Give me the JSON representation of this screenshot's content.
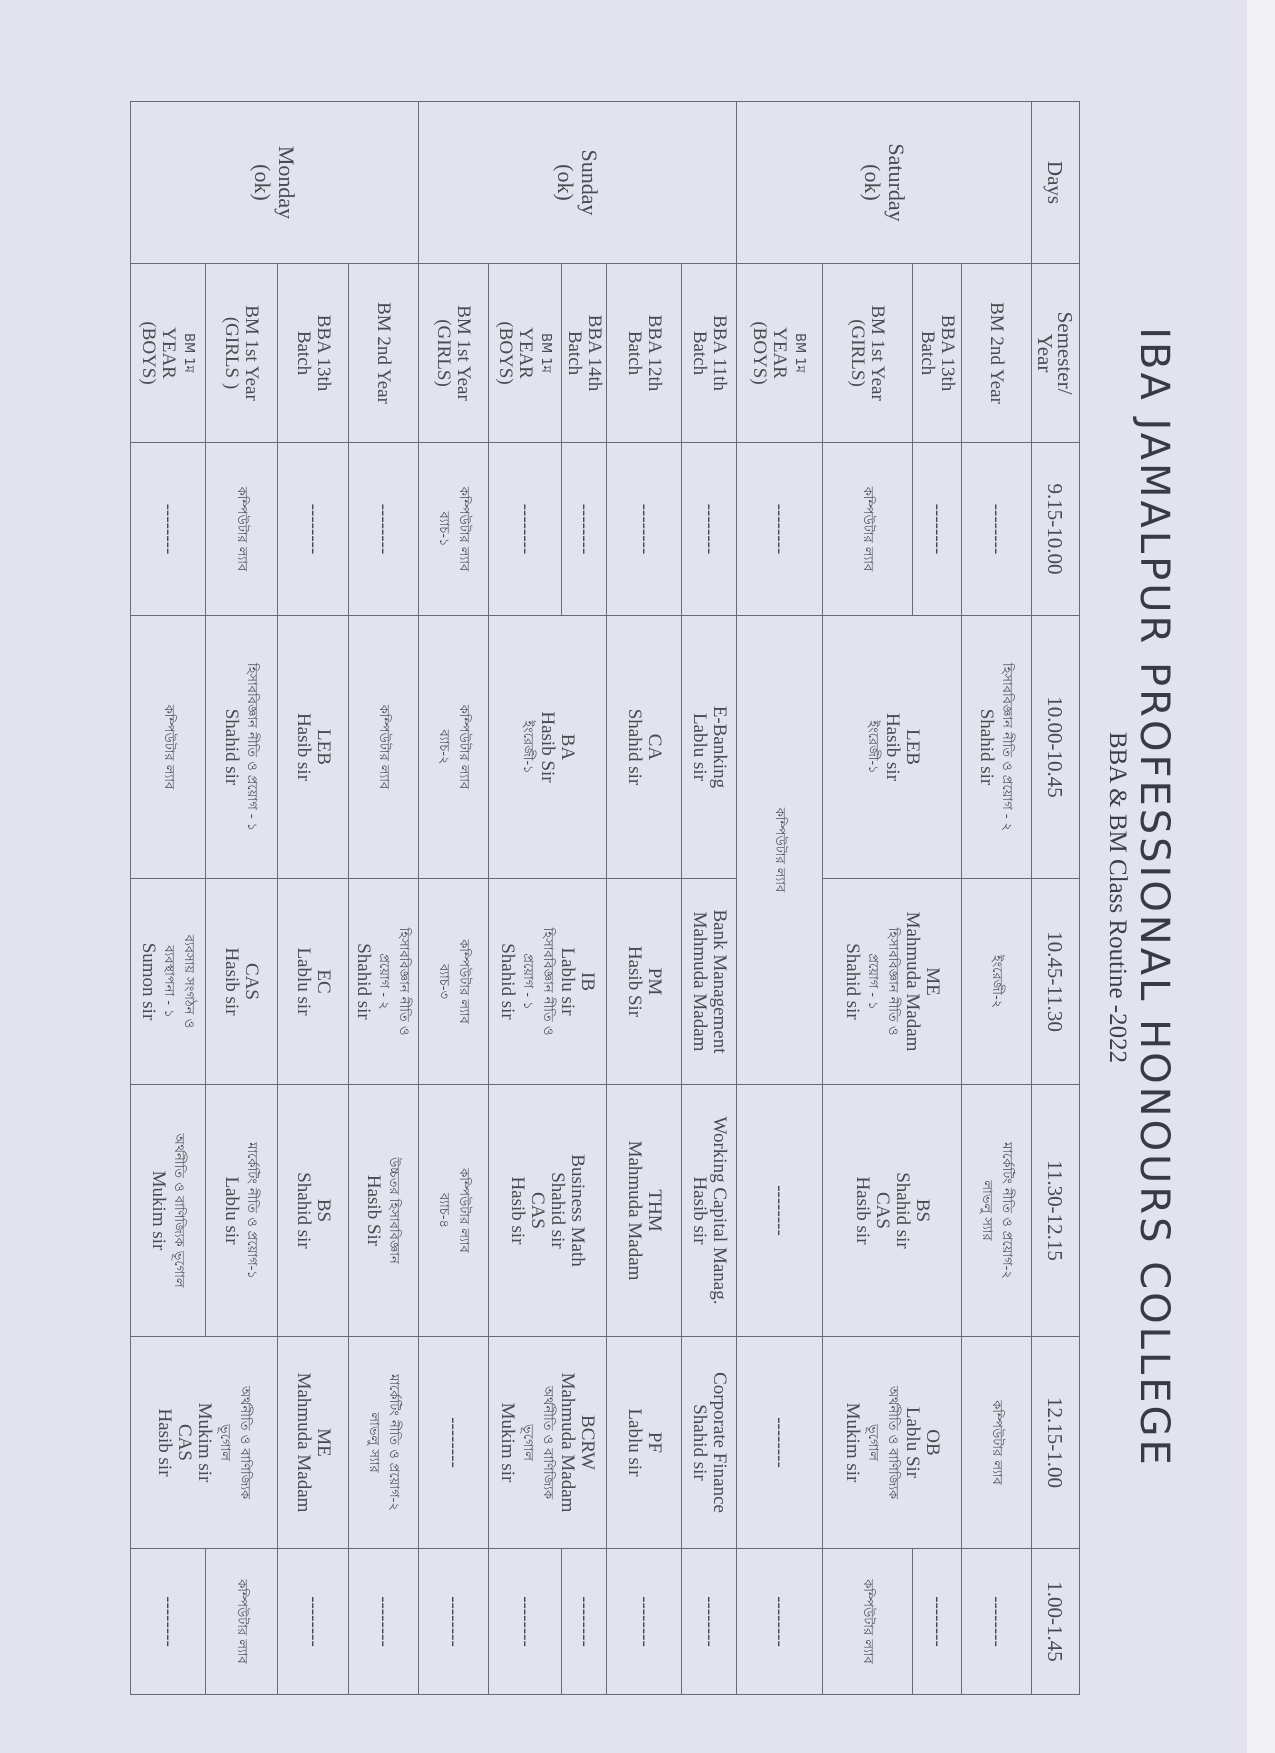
{
  "document": {
    "title": "IBA JAMALPUR PROFESSIONAL HONOURS COLLEGE",
    "subtitle": "BBA & BM Class Routine -2022",
    "paper_color": "#e3e3ed",
    "line_color": "#6b6b74"
  },
  "table": {
    "header": {
      "days": "Days",
      "semester": [
        "Semester/",
        "Year"
      ],
      "times": [
        "9.15-10.00",
        "10.00-10.45",
        "10.45-11.30",
        "11.30-12.15",
        "12.15-1.00",
        "1.00-1.45"
      ]
    },
    "days": [
      {
        "name": [
          "Saturday",
          "(ok)"
        ],
        "rows": [
          {
            "semester": [
              "BM 2nd Year"
            ],
            "cells": [
              [
                "--------"
              ],
              [
                "হিসাববিজ্ঞান নীতি ও প্রয়োগ - ২",
                "Shahid sir"
              ],
              [
                "ইংরেজী-২"
              ],
              [
                "মার্কেটিং নীতি ও প্রয়োগ-২",
                "লাভলু স্যার"
              ],
              [
                "কম্পিউটার ল্যাব"
              ],
              [
                "--------"
              ]
            ]
          },
          {
            "semester": [
              "BBA 13th",
              "Batch"
            ],
            "cells": [
              [
                "--------"
              ],
              [
                "LEB",
                "Hasib sir",
                "ইংরেজী-১"
              ],
              [
                "ME",
                "Mahmuda Madam",
                "হিসাববিজ্ঞান নীতি ও",
                "প্রয়োগ - ১",
                "Shahid sir"
              ],
              [
                "BS",
                "Shahid sir",
                "CAS",
                "Hasib sir"
              ],
              [
                "OB",
                "Lablu Sir",
                "অর্থনীতি ও বাণিজ্যিক",
                "ভূগোল",
                "Mukim sir"
              ],
              [
                "--------"
              ]
            ]
          },
          {
            "semester": [
              "BM 1st Year",
              "(GIRLS)"
            ],
            "cells": [
              [
                "কম্পিউটার ল্যাব"
              ],
              [
                "কম্পিউটার ল্যাব"
              ]
            ]
          },
          {
            "semester": [
              "BM 1ম",
              "YEAR",
              "(BOYS)"
            ],
            "cells": [
              [
                "--------"
              ],
              [
                "কম্পিউটার ল্যাব"
              ],
              [
                "--------"
              ],
              [
                "--------"
              ],
              [
                "--------"
              ]
            ]
          }
        ]
      },
      {
        "name": [
          "Sunday",
          "(ok)"
        ],
        "rows": [
          {
            "semester": [
              "BBA 11th",
              "Batch"
            ],
            "cells": [
              [
                "--------"
              ],
              [
                "E-Banking",
                "Lablu sir"
              ],
              [
                "Bank Management",
                "Mahmuda Madam"
              ],
              [
                "Working Capital Manag.",
                "Hasib sir"
              ],
              [
                "Corporate Finance",
                "Shahid sir"
              ],
              [
                "--------"
              ]
            ]
          },
          {
            "semester": [
              "BBA 12th",
              "Batch"
            ],
            "cells": [
              [
                "--------"
              ],
              [
                "CA",
                "Shahid sir"
              ],
              [
                "PM",
                "Hasib Sir"
              ],
              [
                "THM",
                "Mahmuda Madam"
              ],
              [
                "PF",
                "Lablu sir"
              ],
              [
                "--------"
              ]
            ]
          },
          {
            "semester": [
              "BBA 14th",
              "Batch"
            ],
            "cells": [
              [
                "--------"
              ],
              [
                "BA",
                "Hasib Sir",
                "ইংরেজী-১"
              ],
              [
                "IB",
                "Lablu sir",
                "হিসাববিজ্ঞান নীতি ও",
                "প্রয়োগ - ১",
                "Shahid sir"
              ],
              [
                "Business Math",
                "Shahid sir",
                "CAS",
                "Hasib sir"
              ],
              [
                "BCRW",
                "Mahmuda Madam",
                "অর্থনীতি ও বাণিজ্যিক",
                "ভূগোল",
                "Mukim sir"
              ],
              [
                "--------"
              ]
            ]
          },
          {
            "semester": [
              "BM 1ম",
              "YEAR",
              "(BOYS)"
            ],
            "cells": [
              [
                "--------"
              ],
              [
                "--------"
              ]
            ]
          },
          {
            "semester": [
              "BM 1st Year",
              "(GIRLS)"
            ],
            "cells": [
              [
                "কম্পিউটার ল্যাব",
                "ব্যাচ-১"
              ],
              [
                "কম্পিউটার ল্যাব",
                "ব্যাচ-২"
              ],
              [
                "কম্পিউটার ল্যাব",
                "ব্যাচ-৩"
              ],
              [
                "কম্পিউটার ল্যাব",
                "ব্যাচ-৪"
              ],
              [
                "--------"
              ],
              [
                "--------"
              ]
            ]
          }
        ]
      },
      {
        "name": [
          "Monday",
          "(ok)"
        ],
        "rows": [
          {
            "semester": [
              "BM 2nd Year"
            ],
            "cells": [
              [
                "--------"
              ],
              [
                "কম্পিউটার ল্যাব"
              ],
              [
                "হিসাববিজ্ঞান নীতি ও",
                "প্রয়োগ - ২",
                "Shahid sir"
              ],
              [
                "উচ্চতর হিসাববিজ্ঞান",
                "Hasib Sir"
              ],
              [
                "মার্কেটিং নীতি ও প্রয়োগ-২",
                "লাভলু স্যার"
              ],
              [
                "--------"
              ]
            ]
          },
          {
            "semester": [
              "BBA 13th",
              "Batch"
            ],
            "cells": [
              [
                "--------"
              ],
              [
                "LEB",
                "Hasib sir"
              ],
              [
                "EC",
                "Lablu sir"
              ],
              [
                "BS",
                "Shahid sir"
              ],
              [
                "ME",
                "Mahmuda Madam"
              ],
              [
                "--------"
              ]
            ]
          },
          {
            "semester": [
              "BM 1st Year",
              "(GIRLS )"
            ],
            "cells": [
              [
                "কম্পিউটার ল্যাব"
              ],
              [
                "হিসাববিজ্ঞান নীতি ও প্রয়োগ - ১",
                "Shahid sir"
              ],
              [
                "CAS",
                "Hasib sir"
              ],
              [
                "মার্কেটিং নীতি ও প্রয়োগ-১",
                "Lablu sir"
              ],
              [
                "অর্থনীতি ও বাণিজ্যিক",
                "ভূগোল",
                "Mukim sir",
                "CAS",
                "Hasib sir"
              ],
              [
                "কম্পিউটার ল্যাব"
              ]
            ]
          },
          {
            "semester": [
              "BM 1ম",
              "YEAR",
              "(BOYS)"
            ],
            "cells": [
              [
                "--------"
              ],
              [
                "কম্পিউটার ল্যাব"
              ],
              [
                "ব্যবসায় সংগঠন ও",
                "ব্যবস্থাপনা - ১",
                "Sumon sir"
              ],
              [
                "অর্থনীতি ও বাণিজ্যিক ভূগোল",
                "Mukim sir"
              ],
              [
                "--------"
              ]
            ]
          }
        ]
      }
    ]
  }
}
